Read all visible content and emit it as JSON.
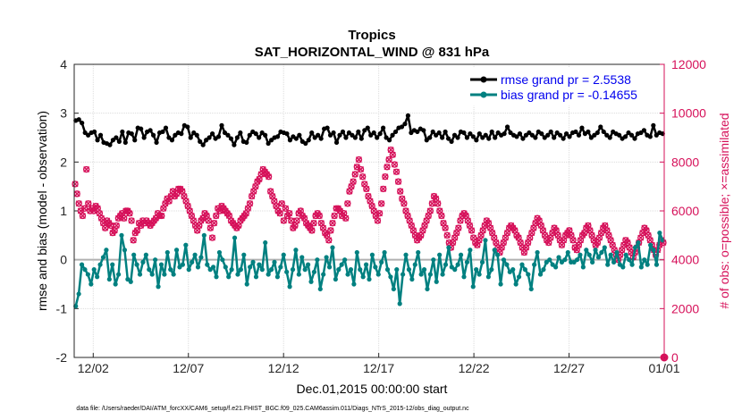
{
  "chart_data": {
    "type": "line",
    "title": "Tropics",
    "subtitle": "SAT_HORIZONTAL_WIND @ 831 hPa",
    "xlabel": "Dec.01,2015 00:00:00 start",
    "ylabel_left": "rmse and bias (model - observation)",
    "ylabel_right": "# of obs: o=possible; ×=assimilated",
    "footnote": "data file: /Users/raeder/DAI/ATM_forcXX/CAM6_setup/f.e21.FHIST_BGC.f09_025.CAM6assim.011/Diags_NTrS_2015-12/obs_diag_output.nc",
    "xlim_days": [
      0,
      31
    ],
    "x_ticks": [
      {
        "label": "12/02",
        "day": 1
      },
      {
        "label": "12/07",
        "day": 6
      },
      {
        "label": "12/12",
        "day": 11
      },
      {
        "label": "12/17",
        "day": 16
      },
      {
        "label": "12/22",
        "day": 21
      },
      {
        "label": "12/27",
        "day": 26
      },
      {
        "label": "01/01",
        "day": 31
      }
    ],
    "y_left": {
      "min": -2,
      "max": 4,
      "ticks": [
        "-2",
        "-1",
        "0",
        "1",
        "2",
        "3",
        "4"
      ]
    },
    "y_right": {
      "min": 0,
      "max": 12000,
      "ticks": [
        "0",
        "2000",
        "4000",
        "6000",
        "8000",
        "10000",
        "12000"
      ]
    },
    "grid": true,
    "legend_position": "top-right",
    "series": [
      {
        "name": "rmse grand pr = 2.5538",
        "color": "#000000",
        "axis": "left",
        "values": [
          2.85,
          2.87,
          2.8,
          2.6,
          2.55,
          2.6,
          2.62,
          2.45,
          2.55,
          2.4,
          2.38,
          2.35,
          2.45,
          2.5,
          2.42,
          2.62,
          2.4,
          2.6,
          2.58,
          2.45,
          2.7,
          2.68,
          2.5,
          2.62,
          2.65,
          2.55,
          2.4,
          2.6,
          2.62,
          2.7,
          2.5,
          2.45,
          2.55,
          2.6,
          2.58,
          2.75,
          2.72,
          2.5,
          2.6,
          2.55,
          2.42,
          2.35,
          2.45,
          2.5,
          2.58,
          2.48,
          2.52,
          2.75,
          2.6,
          2.55,
          2.48,
          2.35,
          2.5,
          2.6,
          2.42,
          2.4,
          2.55,
          2.62,
          2.58,
          2.5,
          2.6,
          2.55,
          2.38,
          2.45,
          2.5,
          2.52,
          2.62,
          2.6,
          2.58,
          2.45,
          2.52,
          2.48,
          2.55,
          2.42,
          2.38,
          2.45,
          2.6,
          2.5,
          2.55,
          2.48,
          2.68,
          2.7,
          2.55,
          2.6,
          2.4,
          2.55,
          2.62,
          2.5,
          2.6,
          2.55,
          2.5,
          2.62,
          2.48,
          2.65,
          2.7,
          2.55,
          2.6,
          2.5,
          2.58,
          2.7,
          2.5,
          2.45,
          2.55,
          2.62,
          2.7,
          2.72,
          2.78,
          2.95,
          2.6,
          2.65,
          2.62,
          2.68,
          2.65,
          2.45,
          2.5,
          2.62,
          2.55,
          2.6,
          2.5,
          2.62,
          2.48,
          2.42,
          2.55,
          2.5,
          2.62,
          2.6,
          2.5,
          2.58,
          2.52,
          2.45,
          2.58,
          2.5,
          2.55,
          2.48,
          2.62,
          2.5,
          2.6,
          2.55,
          2.58,
          2.72,
          2.6,
          2.55,
          2.52,
          2.58,
          2.48,
          2.55,
          2.6,
          2.55,
          2.5,
          2.62,
          2.58,
          2.5,
          2.55,
          2.62,
          2.5,
          2.6,
          2.55,
          2.48,
          2.58,
          2.52,
          2.6,
          2.62,
          2.55,
          2.7,
          2.58,
          2.62,
          2.5,
          2.55,
          2.6,
          2.72,
          2.62,
          2.55,
          2.5,
          2.62,
          2.58,
          2.55,
          2.48,
          2.52,
          2.6,
          2.55,
          2.48,
          2.58,
          2.6,
          2.65,
          2.55,
          2.52,
          2.75,
          2.55,
          2.6,
          2.58
        ]
      },
      {
        "name": "bias grand pr = -0.14655",
        "color": "#008080",
        "axis": "left",
        "values": [
          -0.95,
          -0.7,
          -0.1,
          -0.2,
          -0.3,
          -0.5,
          -0.2,
          -0.35,
          -0.1,
          0.05,
          0.2,
          -0.4,
          -0.1,
          -0.5,
          -0.3,
          0.5,
          0.2,
          -0.4,
          -0.45,
          0.1,
          -0.1,
          -0.3,
          -0.05,
          0.1,
          -0.2,
          -0.3,
          0.0,
          -0.55,
          -0.1,
          -0.3,
          0.15,
          -0.2,
          -0.3,
          0.2,
          -0.15,
          -0.1,
          0.3,
          -0.2,
          -0.05,
          0.1,
          -0.15,
          0.05,
          0.5,
          -0.1,
          -0.2,
          -0.15,
          -0.35,
          0.15,
          0.0,
          -0.15,
          -0.35,
          -0.2,
          0.45,
          -0.3,
          -0.2,
          0.1,
          -0.5,
          -0.15,
          -0.05,
          -0.35,
          -0.1,
          -0.2,
          0.35,
          -0.3,
          -0.2,
          -0.05,
          -0.35,
          -0.15,
          0.1,
          -0.25,
          -0.55,
          -0.2,
          0.2,
          -0.3,
          0.05,
          -0.2,
          -0.1,
          -0.45,
          -0.25,
          0.0,
          -0.6,
          -0.3,
          0.05,
          -0.15,
          0.25,
          -0.4,
          -0.2,
          -0.1,
          0.0,
          -0.3,
          -0.2,
          -0.5,
          0.15,
          -0.2,
          -0.35,
          -0.1,
          -0.4,
          0.1,
          -0.15,
          -0.3,
          -0.05,
          0.15,
          -0.2,
          -0.35,
          -0.6,
          -0.2,
          -0.9,
          -0.3,
          0.1,
          -0.2,
          -0.4,
          -0.1,
          0.15,
          -0.3,
          -0.2,
          -0.6,
          -0.3,
          0.0,
          -0.45,
          0.1,
          -0.3,
          -0.1,
          0.25,
          -0.15,
          -0.2,
          -0.1,
          0.1,
          -0.35,
          -0.05,
          0.2,
          -0.55,
          -0.2,
          -0.3,
          -0.05,
          0.4,
          -0.35,
          -0.2,
          0.2,
          0.1,
          -0.5,
          0.0,
          -0.1,
          -0.25,
          -0.2,
          -0.5,
          -0.35,
          -0.1,
          -0.2,
          -0.3,
          -0.6,
          -0.1,
          0.15,
          -0.3,
          -0.2,
          -0.05,
          0.0,
          -0.1,
          -0.15,
          0.05,
          -0.05,
          0.0,
          0.15,
          -0.05,
          -0.05,
          0.0,
          0.1,
          -0.15,
          0.2,
          0.1,
          -0.05,
          0.2,
          0.05,
          0.15,
          0.25,
          -0.1,
          0.1,
          -0.05,
          0.15,
          -0.1,
          -0.15,
          0.1,
          0.0,
          -0.1,
          0.25,
          0.35,
          -0.15,
          0.0,
          -0.1,
          0.3,
          0.2,
          -0.1,
          0.55,
          0.4
        ]
      }
    ],
    "obs_possible": {
      "marker": "o",
      "color": "#d6115a",
      "axis": "right",
      "values": [
        7100,
        6700,
        6300,
        6000,
        5800,
        6100,
        7700,
        6300,
        6000,
        6100,
        6000,
        6200,
        6100,
        5900,
        5700,
        5500,
        5300,
        5600,
        5500,
        5400,
        5100,
        5200,
        5400,
        5700,
        5800,
        5900,
        5700,
        6000,
        6000,
        5900,
        5600,
        4800,
        5100,
        5200,
        5500,
        5400,
        5600,
        5500,
        5600,
        5500,
        5400,
        5500,
        5600,
        5700,
        5900,
        5800,
        5800,
        6100,
        6300,
        6500,
        6400,
        6600,
        6800,
        6600,
        6700,
        6900,
        6900,
        6800,
        6600,
        6400,
        6200,
        6000,
        5800,
        5600,
        5400,
        5200,
        5400,
        5600,
        5700,
        5900,
        5800,
        5600,
        5300,
        4900,
        5500,
        5800,
        6100,
        6000,
        6200,
        6100,
        6000,
        5900,
        5800,
        5600,
        5500,
        5400,
        5300,
        5400,
        5600,
        5700,
        5800,
        5900,
        6100,
        6300,
        6600,
        6800,
        7000,
        7200,
        7300,
        7500,
        7700,
        7600,
        7500,
        7400,
        6800,
        6600,
        6400,
        6200,
        6000,
        5900,
        6300,
        5600,
        6100,
        5800,
        5900,
        5600,
        5300,
        5400,
        5600,
        5900,
        6000,
        5800,
        5700,
        5500,
        5400,
        5300,
        5200,
        5500,
        5800,
        5900,
        5800,
        5500,
        5300,
        5100,
        5000,
        4800,
        5200,
        5500,
        5800,
        6100,
        6100,
        6000,
        5800,
        5900,
        5700,
        6300,
        6800,
        7000,
        7200,
        7500,
        7800,
        8100,
        7700,
        7400,
        7100,
        6900,
        6600,
        6400,
        6200,
        6000,
        5800,
        5600,
        5900,
        6300,
        6900,
        7400,
        7800,
        8100,
        8500,
        8300,
        7900,
        7600,
        7200,
        6800,
        6500,
        6300,
        6000,
        5800,
        5600,
        5400,
        5200,
        5000,
        4800,
        4900,
        5000,
        5200,
        5400,
        5600,
        5800,
        6000,
        6300,
        6600,
        6500,
        6300,
        6000,
        5800,
        5500,
        5300,
        5000,
        4700,
        4500,
        4700,
        4900,
        5100,
        5300,
        5600,
        5800,
        5900,
        5800,
        5600,
        5400,
        5200,
        4900,
        4700,
        4600,
        4800,
        5000,
        5200,
        5400,
        5600,
        5500,
        5300,
        5100,
        4900,
        4700,
        4500,
        4300,
        4500,
        4700,
        4900,
        5100,
        5300,
        5400,
        5300,
        5200,
        5000,
        4900,
        4700,
        4500,
        4300,
        4500,
        4700,
        4900,
        5100,
        5300,
        5500,
        5700,
        5600,
        5400,
        5200,
        5000,
        4800,
        4700,
        4900,
        5100,
        5300,
        5200,
        5000,
        4800,
        4600,
        4800,
        5000,
        5100,
        5200,
        5000,
        4800,
        4500,
        4400,
        4600,
        4800,
        5000,
        5100,
        5300,
        5400,
        5200,
        5000,
        4800,
        4600,
        4700,
        4900,
        5100,
        5300,
        5400,
        5200,
        5000,
        4800,
        4600,
        4400,
        4200,
        4000,
        4200,
        4400,
        4600,
        4800,
        4700,
        4500,
        4300,
        4100,
        4300,
        4500,
        4700,
        4900,
        5100,
        5300,
        5200,
        5000,
        4800,
        4600,
        4400,
        4200,
        4400,
        4600,
        4800,
        4700
      ]
    }
  },
  "legend": {
    "rmse": "rmse grand pr = 2.5538",
    "bias": "bias grand pr = -0.14655"
  }
}
